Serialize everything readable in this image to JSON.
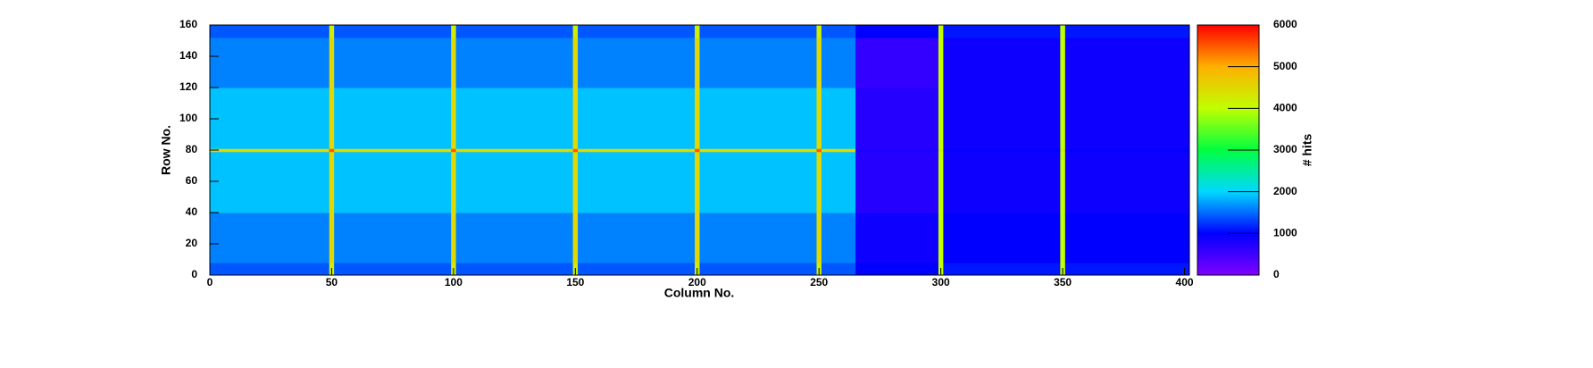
{
  "chart_data": {
    "type": "heatmap",
    "x_label": "Column No.",
    "y_label": "Row No.",
    "z_label": "# hits",
    "x_edges": [
      0,
      49,
      51,
      99,
      101,
      149,
      151,
      199,
      201,
      249,
      251,
      265,
      299,
      301,
      349,
      351,
      402
    ],
    "y_edges": [
      0,
      8,
      40,
      79,
      81,
      120,
      152,
      160
    ],
    "z": [
      [
        1400,
        4200,
        1400,
        4200,
        1400,
        4200,
        1400,
        4200,
        1400,
        4200,
        1400,
        1000,
        4000,
        1100,
        4000,
        1100
      ],
      [
        1600,
        4500,
        1600,
        4500,
        1600,
        4500,
        1600,
        4500,
        1600,
        4500,
        1600,
        900,
        4000,
        1000,
        4000,
        1000
      ],
      [
        1900,
        4500,
        1900,
        4500,
        1900,
        4500,
        1900,
        4500,
        1900,
        4500,
        1900,
        700,
        4000,
        900,
        4000,
        900
      ],
      [
        4500,
        5500,
        4500,
        5500,
        4500,
        5500,
        4500,
        5500,
        4500,
        5500,
        4500,
        800,
        4200,
        1000,
        4200,
        1000
      ],
      [
        1900,
        4500,
        1900,
        4500,
        1900,
        4500,
        1900,
        4500,
        1900,
        4500,
        1900,
        700,
        4000,
        900,
        4000,
        900
      ],
      [
        1600,
        4500,
        1600,
        4500,
        1600,
        4500,
        1600,
        4500,
        1600,
        4500,
        1600,
        600,
        4000,
        900,
        4000,
        900
      ],
      [
        1400,
        4200,
        1400,
        4200,
        1400,
        4200,
        1400,
        4200,
        1400,
        4200,
        1400,
        1000,
        4000,
        1100,
        4000,
        1100
      ]
    ],
    "xlim": [
      0,
      402
    ],
    "xticks": [
      0,
      50,
      100,
      150,
      200,
      250,
      300,
      350,
      400
    ],
    "ylim": [
      0,
      160
    ],
    "yticks": [
      0,
      20,
      40,
      60,
      80,
      100,
      120,
      140,
      160
    ],
    "zlim": [
      0,
      6000
    ],
    "zticks": [
      0,
      1000,
      2000,
      3000,
      4000,
      5000,
      6000
    ],
    "colorscale": [
      "#7f00ff",
      "#0000ff",
      "#00d8ff",
      "#00ff40",
      "#c0ff00",
      "#ffb000",
      "#ff0000"
    ]
  }
}
